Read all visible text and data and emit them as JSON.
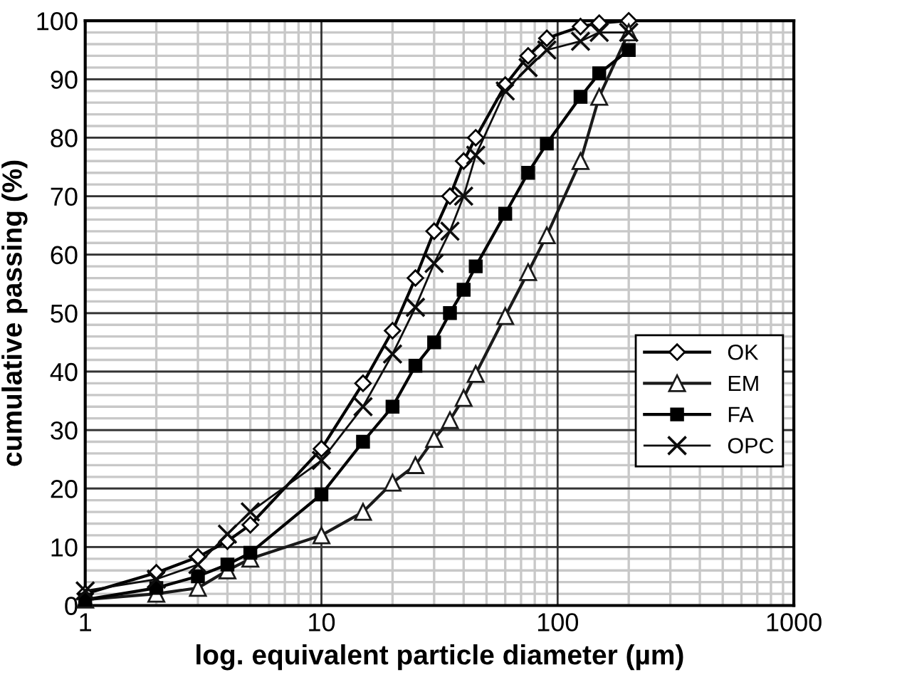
{
  "chart_data": {
    "type": "line",
    "xlabel": "log. equivalent particle diameter (µm)",
    "ylabel": "cumulative passing (%)",
    "log": "x",
    "xlim": [
      1,
      1000
    ],
    "xticks": [
      1,
      10,
      100,
      1000
    ],
    "ylim": [
      0,
      100
    ],
    "yticks": [
      0,
      10,
      20,
      30,
      40,
      50,
      60,
      70,
      80,
      90,
      100
    ],
    "grid": true,
    "legend": "right",
    "line_style": "solid",
    "x": [
      1,
      2,
      3,
      4,
      5,
      10,
      15,
      20,
      25,
      30,
      35,
      40,
      45,
      60,
      75,
      90,
      125,
      150,
      200
    ],
    "series": [
      {
        "name": "OK",
        "color": "#000000",
        "marker": "diamond",
        "values": [
          2,
          5.6,
          8.3,
          11,
          13.8,
          26.8,
          38,
          47,
          56,
          64,
          70,
          76,
          80,
          89,
          94,
          97,
          99,
          99.6,
          100
        ]
      },
      {
        "name": "EM",
        "color": "#1a1a1a",
        "marker": "triangle",
        "values": [
          1,
          2,
          3,
          6,
          8,
          12,
          16,
          21,
          24,
          28.5,
          31.7,
          35.5,
          39.6,
          49.5,
          57,
          63.3,
          76,
          87,
          98
        ]
      },
      {
        "name": "FA",
        "color": "#000000",
        "marker": "square",
        "values": [
          1,
          3,
          5,
          7,
          9,
          19,
          28,
          34,
          41,
          45,
          50,
          54,
          58,
          67,
          74,
          79,
          87,
          91,
          95
        ]
      },
      {
        "name": "OPC",
        "color": "#0d0d0d",
        "marker": "cross",
        "values": [
          2.5,
          4.5,
          7,
          12.2,
          16,
          24.8,
          34,
          43,
          51,
          58.5,
          64,
          70,
          77,
          88,
          92,
          95,
          96.5,
          98,
          98
        ]
      }
    ]
  }
}
